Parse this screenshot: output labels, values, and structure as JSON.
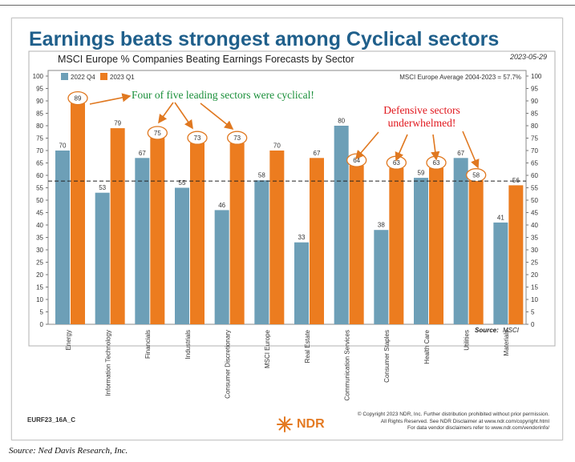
{
  "headline": "Earnings beats strongest among Cyclical sectors",
  "date": "2023-05-29",
  "chart_data": {
    "type": "bar",
    "title": "MSCI Europe % Companies Beating Earnings Forecasts by Sector",
    "categories": [
      "Energy",
      "Information Technology",
      "Financials",
      "Industrials",
      "Consumer Discretionary",
      "MSCI Europe",
      "Real Estate",
      "Communication Services",
      "Consumer Staples",
      "Health Care",
      "Utilities",
      "Materials"
    ],
    "series": [
      {
        "name": "2022 Q4",
        "color": "#6d9fb7",
        "values": [
          70,
          53,
          67,
          55,
          46,
          58,
          33,
          80,
          38,
          59,
          67,
          41
        ]
      },
      {
        "name": "2023 Q1",
        "color": "#ec7c1f",
        "values": [
          89,
          79,
          75,
          73,
          73,
          70,
          67,
          64,
          63,
          63,
          58,
          56
        ]
      }
    ],
    "ylim": [
      0,
      100
    ],
    "yticks": [
      0,
      5,
      10,
      15,
      20,
      25,
      30,
      35,
      40,
      45,
      50,
      55,
      60,
      65,
      70,
      75,
      80,
      85,
      90,
      95,
      100
    ],
    "reference_line": {
      "label": "MSCI Europe Average 2004-2023 = 57.7%",
      "value": 57.7
    },
    "circled_labels": {
      "2023 Q1": [
        0,
        2,
        3,
        4,
        7,
        8,
        9,
        10
      ]
    },
    "source": {
      "label": "Source:",
      "name": "MSCI"
    },
    "annotations": [
      {
        "text": "Four of five leading sectors were cyclical!",
        "color": "#1a8f3a"
      },
      {
        "text_lines": [
          "Defensive sectors",
          "underwhelmed!"
        ],
        "color": "#e0161c"
      }
    ]
  },
  "footer": {
    "code": "EURF23_16A_C",
    "logo_text": "NDR",
    "copyright_lines": [
      "© Copyright 2023 NDR, Inc. Further distribution prohibited without prior permission.",
      "All Rights Reserved. See NDR Disclaimer at www.ndr.com/copyright.html",
      "For data vendor disclaimers refer to www.ndr.com/vendorinfo/"
    ]
  },
  "source_note": "Source: Ned Davis Research, Inc."
}
